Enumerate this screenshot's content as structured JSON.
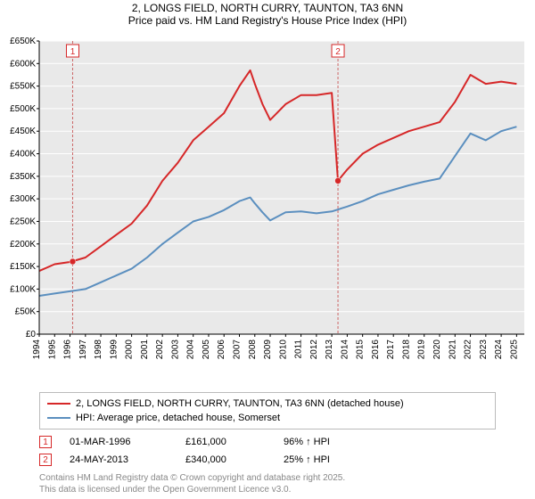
{
  "title_line1": "2, LONGS FIELD, NORTH CURRY, TAUNTON, TA3 6NN",
  "title_line2": "Price paid vs. HM Land Registry's House Price Index (HPI)",
  "chart": {
    "type": "line",
    "plot_bg": "#e9e9e9",
    "grid_color": "#ffffff",
    "axis_color": "#000000",
    "axis_fontsize": 10,
    "x_years": [
      1994,
      1995,
      1996,
      1997,
      1998,
      1999,
      2000,
      2001,
      2002,
      2003,
      2004,
      2005,
      2006,
      2007,
      2008,
      2009,
      2010,
      2011,
      2012,
      2013,
      2014,
      2015,
      2016,
      2017,
      2018,
      2019,
      2020,
      2021,
      2022,
      2023,
      2024,
      2025
    ],
    "y_ticks": [
      0,
      50,
      100,
      150,
      200,
      250,
      300,
      350,
      400,
      450,
      500,
      550,
      600,
      650
    ],
    "y_tick_labels": [
      "£0",
      "£50K",
      "£100K",
      "£150K",
      "£200K",
      "£250K",
      "£300K",
      "£350K",
      "£400K",
      "£450K",
      "£500K",
      "£550K",
      "£600K",
      "£650K"
    ],
    "ylim": [
      0,
      650
    ],
    "xlim": [
      1994,
      2025.5
    ],
    "series": [
      {
        "name": "price_paid",
        "color": "#d62728",
        "line_width": 2,
        "x": [
          1994,
          1995,
          1996,
          1997,
          1998,
          1999,
          2000,
          2001,
          2002,
          2003,
          2004,
          2005,
          2006,
          2007,
          2007.7,
          2008,
          2008.5,
          2009,
          2010,
          2011,
          2012,
          2013,
          2013.4,
          2014,
          2015,
          2016,
          2017,
          2018,
          2019,
          2020,
          2021,
          2022,
          2023,
          2024,
          2025
        ],
        "y": [
          140,
          155,
          160,
          170,
          195,
          220,
          245,
          285,
          340,
          380,
          430,
          460,
          490,
          550,
          585,
          555,
          510,
          475,
          510,
          530,
          530,
          535,
          340,
          365,
          400,
          420,
          435,
          450,
          460,
          470,
          515,
          575,
          555,
          560,
          555
        ],
        "sale_markers": [
          {
            "num": "1",
            "x": 1996.17,
            "y": 161,
            "color": "#d62728"
          },
          {
            "num": "2",
            "x": 2013.4,
            "y": 340,
            "color": "#d62728"
          }
        ]
      },
      {
        "name": "hpi",
        "color": "#5b8fbf",
        "line_width": 2,
        "x": [
          1994,
          1995,
          1996,
          1997,
          1998,
          1999,
          2000,
          2001,
          2002,
          2003,
          2004,
          2005,
          2006,
          2007,
          2007.7,
          2008,
          2008.5,
          2009,
          2010,
          2011,
          2012,
          2013,
          2014,
          2015,
          2016,
          2017,
          2018,
          2019,
          2020,
          2021,
          2022,
          2023,
          2024,
          2025
        ],
        "y": [
          85,
          90,
          95,
          100,
          115,
          130,
          145,
          170,
          200,
          225,
          250,
          260,
          275,
          295,
          303,
          290,
          270,
          252,
          270,
          272,
          268,
          272,
          283,
          295,
          310,
          320,
          330,
          338,
          345,
          395,
          445,
          430,
          450,
          460
        ]
      }
    ],
    "sale_lines_color": "#cc6666",
    "sale_x": [
      1996.17,
      2013.4
    ],
    "marker_labels": [
      {
        "num": "1",
        "x": 1996.17,
        "color": "#d62728"
      },
      {
        "num": "2",
        "x": 2013.4,
        "color": "#d62728"
      }
    ]
  },
  "legend": {
    "items": [
      {
        "label": "2, LONGS FIELD, NORTH CURRY, TAUNTON, TA3 6NN (detached house)",
        "color": "#d62728"
      },
      {
        "label": "HPI: Average price, detached house, Somerset",
        "color": "#5b8fbf"
      }
    ]
  },
  "data_points": [
    {
      "num": "1",
      "marker_color": "#d62728",
      "date": "01-MAR-1996",
      "price": "£161,000",
      "pct": "96% ↑ HPI"
    },
    {
      "num": "2",
      "marker_color": "#d62728",
      "date": "24-MAY-2013",
      "price": "£340,000",
      "pct": "25% ↑ HPI"
    }
  ],
  "footer_line1": "Contains HM Land Registry data © Crown copyright and database right 2025.",
  "footer_line2": "This data is licensed under the Open Government Licence v3.0."
}
